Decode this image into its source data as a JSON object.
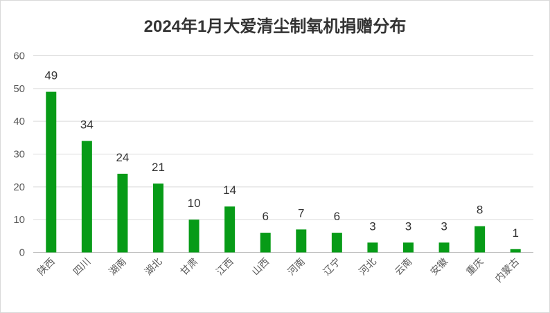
{
  "chart_data": {
    "type": "bar",
    "title": "2024年1月大爱清尘制氧机捐赠分布",
    "categories": [
      "陕西",
      "四川",
      "湖南",
      "湖北",
      "甘肃",
      "江西",
      "山西",
      "河南",
      "辽宁",
      "河北",
      "云南",
      "安徽",
      "重庆",
      "内蒙古"
    ],
    "values": [
      49,
      34,
      24,
      21,
      10,
      14,
      6,
      7,
      6,
      3,
      3,
      3,
      8,
      1
    ],
    "xlabel": "",
    "ylabel": "",
    "ylim": [
      0,
      60
    ],
    "yticks": [
      0,
      10,
      20,
      30,
      40,
      50,
      60
    ],
    "grid": true,
    "legend": "none",
    "colors": {
      "bar": "#079b17",
      "grid": "#d9d9d9",
      "tick_text": "#595959",
      "label_text": "#333333"
    }
  }
}
